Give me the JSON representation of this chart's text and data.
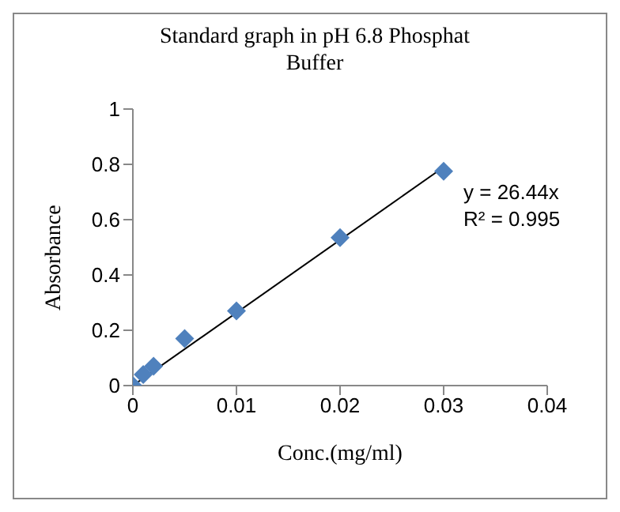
{
  "chart_data": {
    "type": "scatter",
    "title": "Standard graph in pH 6.8 Phosphat Buffer",
    "xlabel": "Conc.(mg/ml)",
    "ylabel": "Absorbance",
    "series": [
      {
        "color": "#4f81bd",
        "marker": "diamond",
        "x": [
          0,
          0.001,
          0.002,
          0.005,
          0.01,
          0.02,
          0.03
        ],
        "values": [
          0,
          0.04,
          0.07,
          0.17,
          0.27,
          0.535,
          0.775
        ]
      },
      {
        "type": "line",
        "color": "#000000",
        "marker": "none",
        "x": [
          0,
          0.03
        ],
        "values": [
          0,
          0.79
        ]
      }
    ],
    "xlim": [
      0,
      0.04
    ],
    "xticks": [
      0,
      0.01,
      0.02,
      0.03,
      0.04
    ],
    "ylim": [
      0,
      1
    ],
    "yticks": [
      0,
      0.2,
      0.4,
      0.6,
      0.8,
      1
    ],
    "grid": false,
    "legend": false,
    "annotations": [
      "y = 26.44x",
      "R² = 0.995"
    ]
  }
}
